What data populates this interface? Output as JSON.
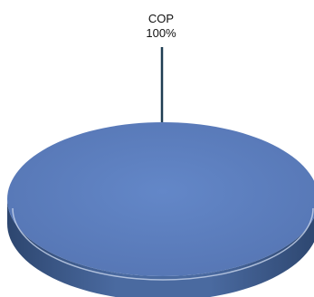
{
  "chart_data": {
    "type": "pie",
    "three_d": true,
    "categories": [
      "COP"
    ],
    "values": [
      100
    ],
    "data_labels": [
      {
        "category": "COP",
        "percent": "100%"
      }
    ],
    "legend": "none",
    "colors": {
      "slice_top": "#5b7fc0",
      "slice_side": "#3f5f95",
      "leader_line": "#1f3d52"
    }
  }
}
